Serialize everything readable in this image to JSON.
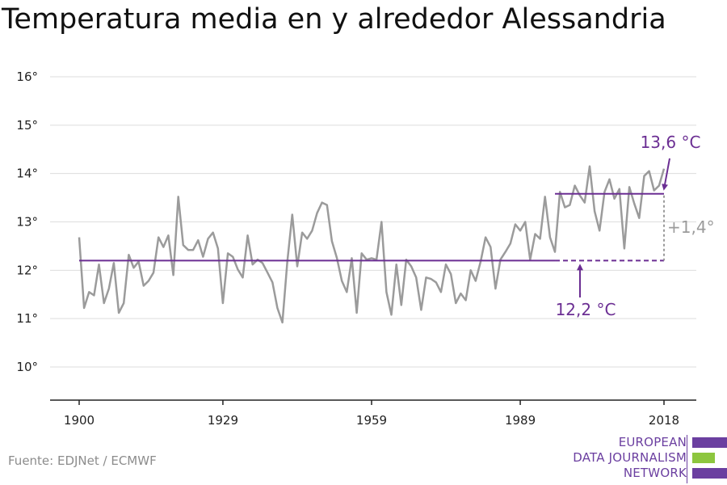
{
  "title": "Temperatura media en y alrededor Alessandria",
  "source": "Fuente: EDJNet / ECMWF",
  "logo": {
    "lines": [
      "EUROPEAN",
      "DATA JOURNALISM",
      "NETWORK"
    ]
  },
  "colors": {
    "series": "#9b9b9b",
    "average": "#6b2e93",
    "difference": "#9b9b9b",
    "grid": "#dddddd",
    "text": "#222222",
    "logo_purple": "#6b3fa0",
    "logo_green": "#8dc63f"
  },
  "chart_data": {
    "type": "line",
    "title": "Temperatura media en y alrededor Alessandria",
    "xlabel": "",
    "ylabel": "",
    "xlim": [
      1900,
      2018
    ],
    "ylim": [
      9.4,
      16.4
    ],
    "x_ticks": [
      1900,
      1929,
      1959,
      1989,
      2018
    ],
    "y_ticks": [
      {
        "value": 10,
        "label": "10°"
      },
      {
        "value": 11,
        "label": "11°"
      },
      {
        "value": 12,
        "label": "12°"
      },
      {
        "value": 13,
        "label": "13°"
      },
      {
        "value": 14,
        "label": "14°"
      },
      {
        "value": 15,
        "label": "15°"
      },
      {
        "value": 16,
        "label": "16°"
      }
    ],
    "grid": true,
    "series": [
      {
        "x": [
          1900,
          1901,
          1902,
          1903,
          1904,
          1905,
          1906,
          1907,
          1908,
          1909,
          1910,
          1911,
          1912,
          1913,
          1914,
          1915,
          1916,
          1917,
          1918,
          1919,
          1920,
          1921,
          1922,
          1923,
          1924,
          1925,
          1926,
          1927,
          1928,
          1929,
          1930,
          1931,
          1932,
          1933,
          1934,
          1935,
          1936,
          1937,
          1938,
          1939,
          1940,
          1941,
          1942,
          1943,
          1944,
          1945,
          1946,
          1947,
          1948,
          1949,
          1950,
          1951,
          1952,
          1953,
          1954,
          1955,
          1956,
          1957,
          1958,
          1959,
          1960,
          1961,
          1962,
          1963,
          1964,
          1965,
          1966,
          1967,
          1968,
          1969,
          1970,
          1971,
          1972,
          1973,
          1974,
          1975,
          1976,
          1977,
          1978,
          1979,
          1980,
          1981,
          1982,
          1983,
          1984,
          1985,
          1986,
          1987,
          1988,
          1989,
          1990,
          1991,
          1992,
          1993,
          1994,
          1995,
          1996,
          1997,
          1998,
          1999,
          2000,
          2001,
          2002,
          2003,
          2004,
          2005,
          2006,
          2007,
          2008,
          2009,
          2010,
          2011,
          2012,
          2013,
          2014,
          2015,
          2016,
          2017,
          2018
        ],
        "values": [
          12.68,
          11.22,
          11.55,
          11.48,
          12.12,
          11.32,
          11.62,
          12.15,
          11.12,
          11.32,
          12.32,
          12.05,
          12.18,
          11.68,
          11.78,
          11.95,
          12.68,
          12.48,
          12.72,
          11.9,
          13.52,
          12.52,
          12.42,
          12.42,
          12.62,
          12.28,
          12.65,
          12.78,
          12.45,
          11.32,
          12.35,
          12.28,
          12.02,
          11.85,
          12.72,
          12.12,
          12.22,
          12.15,
          11.95,
          11.75,
          11.22,
          10.92,
          12.18,
          13.15,
          12.08,
          12.78,
          12.65,
          12.82,
          13.18,
          13.4,
          13.35,
          12.6,
          12.25,
          11.78,
          11.55,
          12.25,
          11.12,
          12.35,
          12.22,
          12.25,
          12.22,
          13.0,
          11.55,
          11.08,
          12.12,
          11.28,
          12.22,
          12.08,
          11.85,
          11.18,
          11.85,
          11.82,
          11.75,
          11.55,
          12.12,
          11.92,
          11.32,
          11.52,
          11.38,
          12.0,
          11.78,
          12.18,
          12.68,
          12.48,
          11.62,
          12.22,
          12.38,
          12.55,
          12.95,
          12.82,
          13.0,
          12.22,
          12.75,
          12.65,
          13.52,
          12.68,
          12.38,
          13.62,
          13.3,
          13.35,
          13.75,
          13.55,
          13.4,
          14.15,
          13.22,
          12.82,
          13.62,
          13.88,
          13.48,
          13.68,
          12.45,
          13.72,
          13.38,
          13.08,
          13.95,
          14.05,
          13.65,
          13.75,
          14.1
        ]
      }
    ],
    "average_lines": [
      {
        "label": "12,2 °C",
        "value": 12.2,
        "solid_x": [
          1900,
          1996
        ],
        "dashed_x": [
          1996,
          2018
        ]
      },
      {
        "label": "13,6 °C",
        "value": 13.58,
        "solid_x": [
          1996,
          2018
        ]
      }
    ],
    "difference": {
      "label": "+1,4°",
      "x": 2018,
      "from": 12.2,
      "to": 13.58
    }
  }
}
